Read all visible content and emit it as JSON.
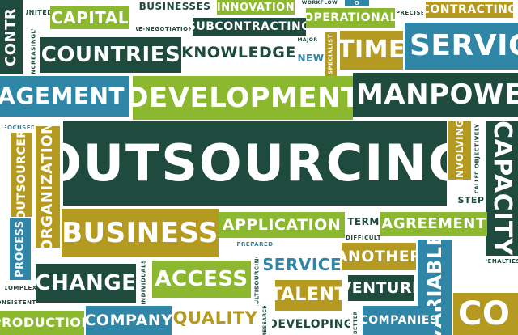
{
  "colors": {
    "dark_green": "#1f4a3e",
    "teal": "#2f86a6",
    "lime": "#8bb82e",
    "olive": "#b59a22",
    "white": "#ffffff"
  },
  "words": {
    "outsourcing": "OUTSOURCING",
    "development": "DEVELOPMENT",
    "manpower": "MANPOWER",
    "management": "NAGEMENT",
    "countries": "COUNTRIES",
    "knowledge": "KNOWLEDGE",
    "time": "TIME",
    "service_top": "SERVIC",
    "capital": "CAPITAL",
    "businesses": "BUSINESSES",
    "innovation": "INNOVATION",
    "subcontracting": "SUBCONTRACTING",
    "operational": "OPERATIONAL",
    "contracting": "CONTRACTING",
    "united": "UNITED",
    "renegotiation": "RE-NEGOTIATION",
    "major": "MAJOR",
    "new": "NEW",
    "workflow": "WORKFLOW",
    "precise": "PRECISE",
    "contr_vertical": "CONTR",
    "increasingly": "INCREASINGLY",
    "specialist": "SPECIALIST",
    "focused": "FOCUSED",
    "outsourcer": "OUTSOURCER",
    "organization": "ORGANIZATION",
    "process": "PROCESS",
    "business": "BUSINESS",
    "application": "APPLICATION",
    "term": "TERM",
    "agreement": "AGREEMENT",
    "prepared": "PREPARED",
    "difficult": "DIFFICULT",
    "service_mid": "SERVICE",
    "another": "ANOTHER",
    "change": "CHANGE",
    "access": "ACCESS",
    "individuals": "INDIVIDUALS",
    "multisourcing": "MULTISOURCING",
    "venture": "VENTURE",
    "variable": "VARIABLE",
    "complex": "COMPLEX",
    "consistently": "CONSISTENTLY",
    "production": "PRODUCTION",
    "company": "COMPANY",
    "quality": "QUALITY",
    "research": "RESEARCH",
    "talent": "TALENT",
    "developing": "DEVELOPING",
    "better": "BETTER",
    "companies": "COMPANIES",
    "involving": "INVOLVING",
    "objectively": "OBJECTIVELY",
    "called": "CALLED",
    "step": "STEP",
    "capacity": "CAPACITY",
    "penalties": "PENALTIES",
    "co": "CO",
    "o": "O"
  }
}
